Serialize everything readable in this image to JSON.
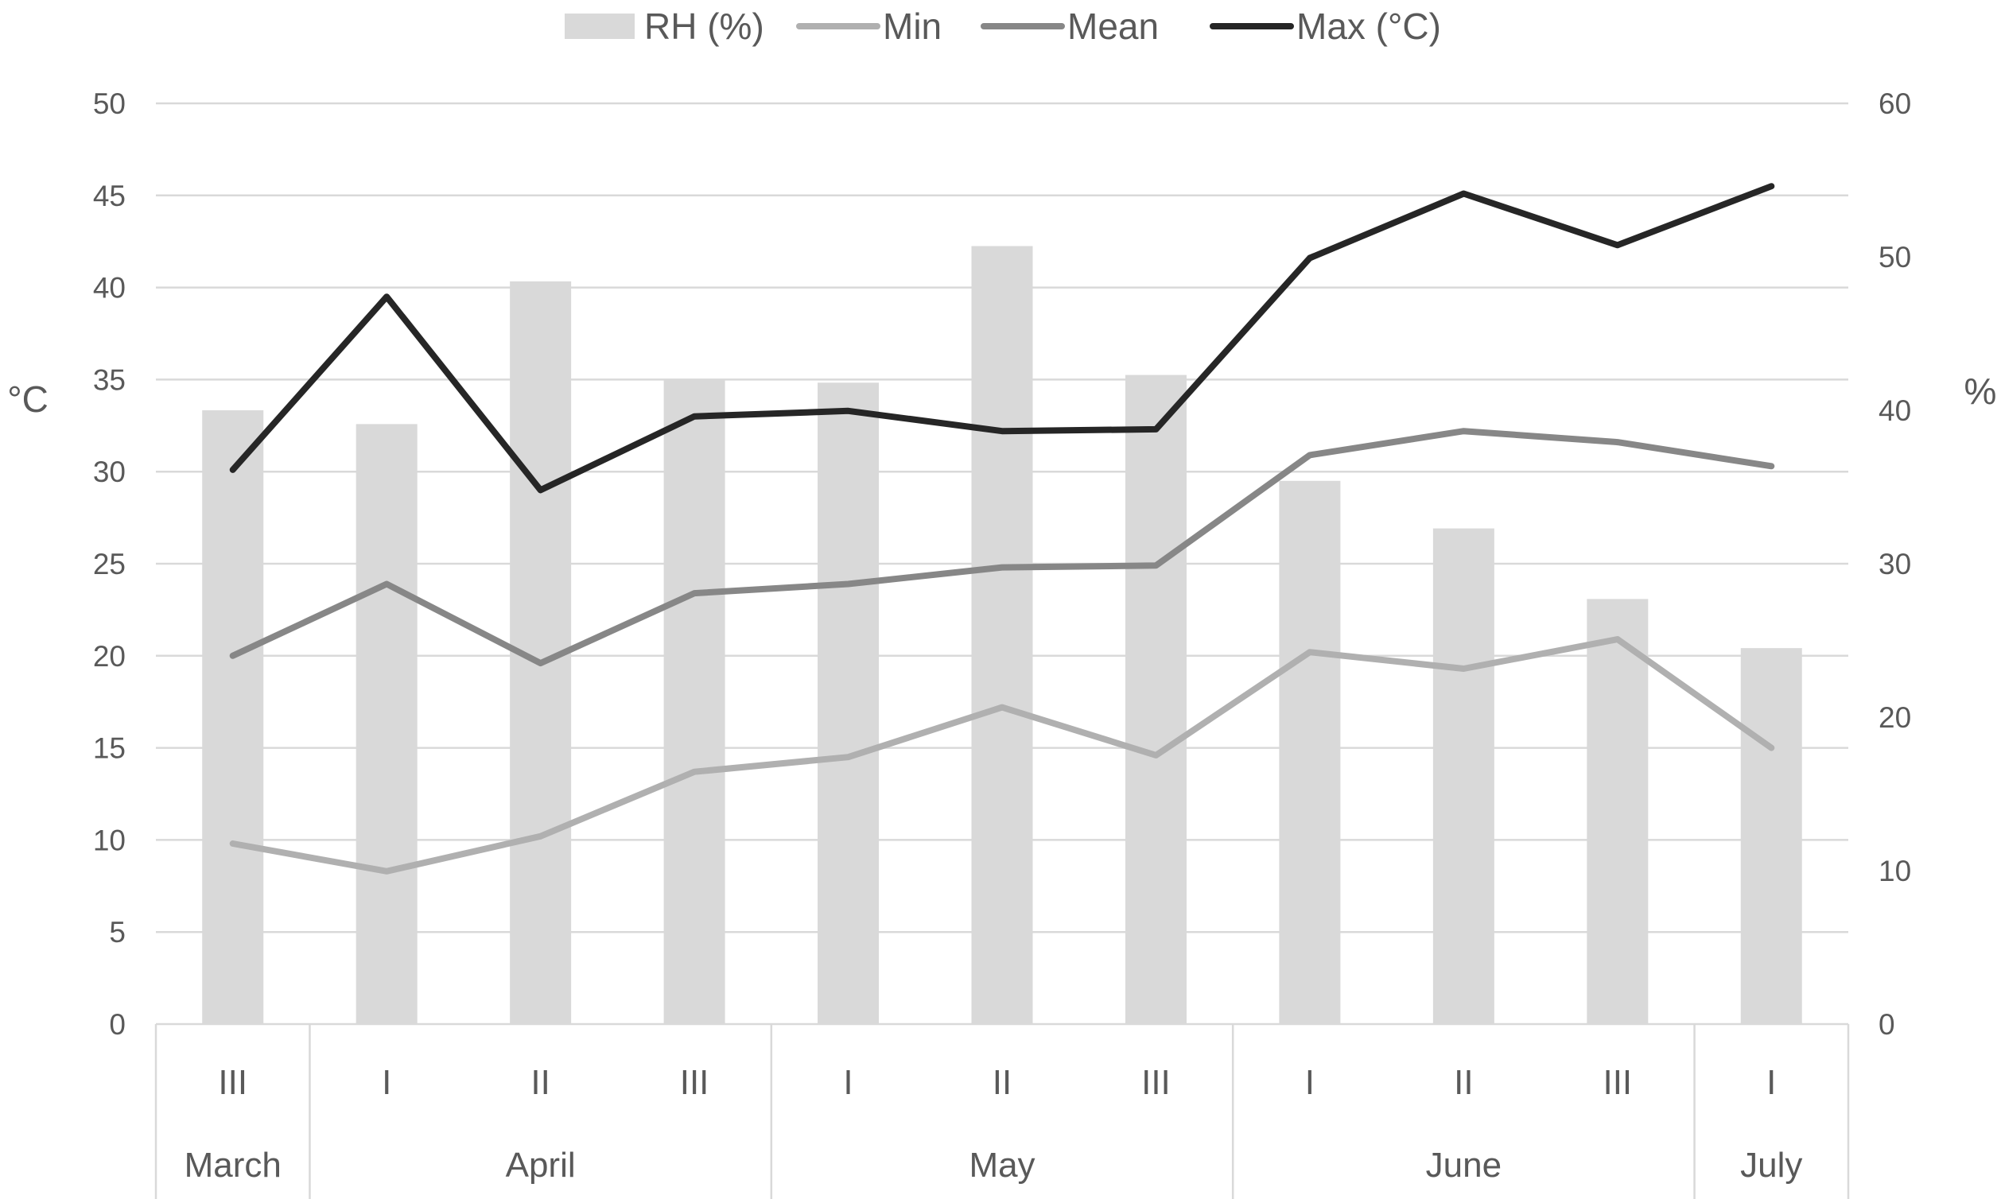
{
  "chart_data": {
    "type": "bar",
    "categories": [
      "III",
      "I",
      "II",
      "III",
      "I",
      "II",
      "III",
      "I",
      "II",
      "III",
      "I"
    ],
    "category_groups": [
      {
        "label": "March",
        "count": 1
      },
      {
        "label": "April",
        "count": 3
      },
      {
        "label": "May",
        "count": 3
      },
      {
        "label": "June",
        "count": 3
      },
      {
        "label": "July",
        "count": 1
      }
    ],
    "ylabel": "°C",
    "y2label": "%",
    "ylim": [
      0,
      50
    ],
    "y2lim": [
      0,
      60
    ],
    "yticks": [
      0,
      5,
      10,
      15,
      20,
      25,
      30,
      35,
      40,
      45,
      50
    ],
    "y2ticks": [
      0,
      10,
      20,
      30,
      40,
      50,
      60
    ],
    "grid": true,
    "legend_position": "top",
    "series": [
      {
        "name": "RH (%)",
        "kind": "bar",
        "axis": "right",
        "color": "#d9d9d9",
        "values": [
          40.0,
          39.1,
          48.4,
          42.0,
          41.8,
          50.7,
          42.3,
          35.4,
          32.3,
          27.7,
          24.5
        ]
      },
      {
        "name": "Min",
        "kind": "line",
        "axis": "left",
        "color": "#b0b0b0",
        "values": [
          9.8,
          8.3,
          10.2,
          13.7,
          14.5,
          17.2,
          14.6,
          20.2,
          19.3,
          20.9,
          15.0
        ]
      },
      {
        "name": "Mean",
        "kind": "line",
        "axis": "left",
        "color": "#878787",
        "values": [
          20.0,
          23.9,
          19.6,
          23.4,
          23.9,
          24.8,
          24.9,
          30.9,
          32.2,
          31.6,
          30.3
        ]
      },
      {
        "name": "Max (°C)",
        "kind": "line",
        "axis": "left",
        "color": "#262626",
        "values": [
          30.1,
          39.5,
          29.0,
          33.0,
          33.3,
          32.2,
          32.3,
          41.6,
          45.1,
          42.3,
          45.5
        ]
      }
    ]
  }
}
